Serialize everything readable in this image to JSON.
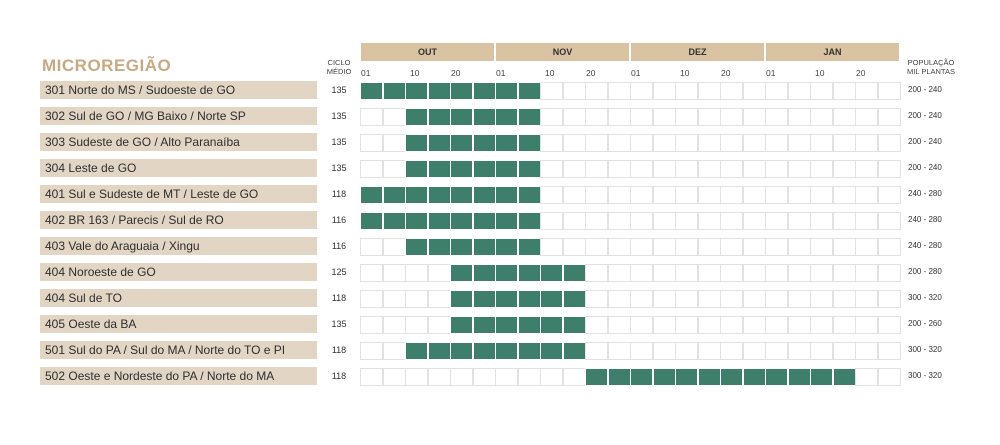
{
  "chart_data": {
    "type": "table",
    "title": "MICROREGIÃO",
    "cycle_header": [
      "CICLO",
      "MÉDIO"
    ],
    "population_header": [
      "POPULAÇÃO",
      "MIL PLANTAS"
    ],
    "months": [
      "OUT",
      "NOV",
      "DEZ",
      "JAN"
    ],
    "day_ticks": [
      "01",
      "10",
      "20"
    ],
    "colors": {
      "active": "#3e7f6c",
      "month_header": "#d9c3a2",
      "row_label": "#e2d5c3",
      "title": "#c8aa82"
    },
    "rows": [
      {
        "region": "301 Norte do MS / Sudoeste de GO",
        "cycle": "135",
        "population": "200 - 240",
        "window": [
          "OUT 01",
          "NOV 10"
        ]
      },
      {
        "region": "302 Sul de GO / MG Baixo / Norte SP",
        "cycle": "135",
        "population": "200 - 240",
        "window": [
          "OUT 10",
          "NOV 10"
        ]
      },
      {
        "region": "303 Sudeste de GO / Alto Paranaíba",
        "cycle": "135",
        "population": "200 - 240",
        "window": [
          "OUT 10",
          "NOV 10"
        ]
      },
      {
        "region": "304 Leste de GO",
        "cycle": "135",
        "population": "200 - 240",
        "window": [
          "OUT 10",
          "NOV 10"
        ]
      },
      {
        "region": "401 Sul e Sudeste de MT / Leste de GO",
        "cycle": "118",
        "population": "240 - 280",
        "window": [
          "OUT 01",
          "NOV 10"
        ]
      },
      {
        "region": "402 BR 163 / Parecis / Sul de RO",
        "cycle": "116",
        "population": "240 - 280",
        "window": [
          "OUT 01",
          "NOV 10"
        ]
      },
      {
        "region": "403 Vale do Araguaia / Xingu",
        "cycle": "116",
        "population": "240 - 280",
        "window": [
          "OUT 10",
          "NOV 10"
        ]
      },
      {
        "region": "404 Noroeste de GO",
        "cycle": "125",
        "population": "200 - 280",
        "window": [
          "OUT 20",
          "NOV 20"
        ]
      },
      {
        "region": "404 Sul de TO",
        "cycle": "118",
        "population": "300 - 320",
        "window": [
          "OUT 20",
          "NOV 20"
        ]
      },
      {
        "region": "405 Oeste da BA",
        "cycle": "135",
        "population": "200 - 260",
        "window": [
          "OUT 20",
          "NOV 20"
        ]
      },
      {
        "region": "501 Sul do PA / Sul do MA / Norte do TO e PI",
        "cycle": "118",
        "population": "300 - 320",
        "window": [
          "OUT 10",
          "NOV 20"
        ]
      },
      {
        "region": "502 Oeste e Nordeste do PA / Norte do MA",
        "cycle": "118",
        "population": "300 - 320",
        "window": [
          "NOV 20",
          "JAN 20"
        ]
      }
    ]
  }
}
